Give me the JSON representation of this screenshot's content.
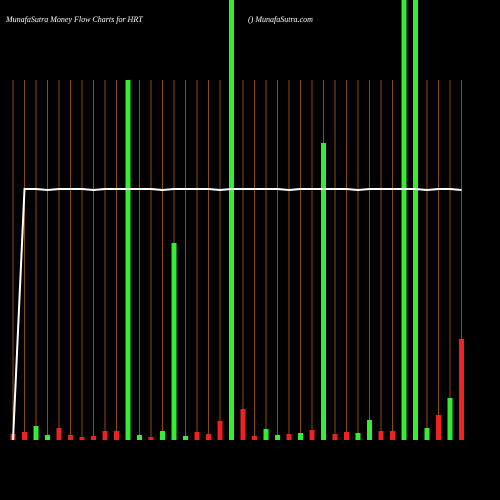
{
  "chart_data": {
    "type": "bar",
    "title": "MunafaSutra  Money Flow  Charts for HRT",
    "subtitle": "() MunafaSutra.com",
    "categories": [
      null,
      null,
      null,
      null,
      null,
      null,
      null,
      null,
      null,
      null,
      null,
      null,
      null,
      null,
      null,
      null,
      null,
      null,
      null,
      null,
      null,
      null,
      null,
      null,
      null,
      null,
      null,
      null,
      null,
      null,
      null,
      null,
      null,
      null,
      null,
      null,
      null,
      null,
      null,
      null
    ],
    "values": [
      6,
      8,
      14,
      5,
      12,
      5,
      3,
      4,
      9,
      9,
      360,
      5,
      3,
      9,
      197,
      4,
      8,
      6,
      19,
      440,
      31,
      4,
      11,
      5,
      6,
      7,
      10,
      297,
      6,
      8,
      7,
      20,
      9,
      9,
      440,
      440,
      12,
      25,
      42,
      101
    ],
    "colors": [
      "#ee2222",
      "#ee2222",
      "#33ee33",
      "#33ee33",
      "#ee2222",
      "#ee2222",
      "#ee2222",
      "#ee2222",
      "#ee2222",
      "#ee2222",
      "#33ee33",
      "#33ee33",
      "#ee2222",
      "#33ee33",
      "#33ee33",
      "#33ee33",
      "#ee2222",
      "#ee2222",
      "#ee2222",
      "#33ee33",
      "#ee2222",
      "#ee2222",
      "#33ee33",
      "#33ee33",
      "#ee2222",
      "#33ee33",
      "#ee2222",
      "#33ee33",
      "#ee2222",
      "#ee2222",
      "#33ee33",
      "#33ee33",
      "#ee2222",
      "#ee2222",
      "#33ee33",
      "#33ee33",
      "#33ee33",
      "#ee2222",
      "#33ee33",
      "#ee2222"
    ],
    "line": {
      "color": "#ffffff",
      "values": [
        0,
        251,
        251,
        250,
        251,
        251,
        251,
        250,
        251,
        251,
        251,
        251,
        251,
        250,
        251,
        251,
        251,
        251,
        250,
        251,
        251,
        251,
        251,
        251,
        250,
        251,
        251,
        251,
        251,
        251,
        250,
        251,
        251,
        251,
        251,
        251,
        250,
        251,
        251,
        250
      ]
    },
    "ylim": [
      0,
      440
    ],
    "grid": true,
    "grid_color": "#8b4a14"
  }
}
